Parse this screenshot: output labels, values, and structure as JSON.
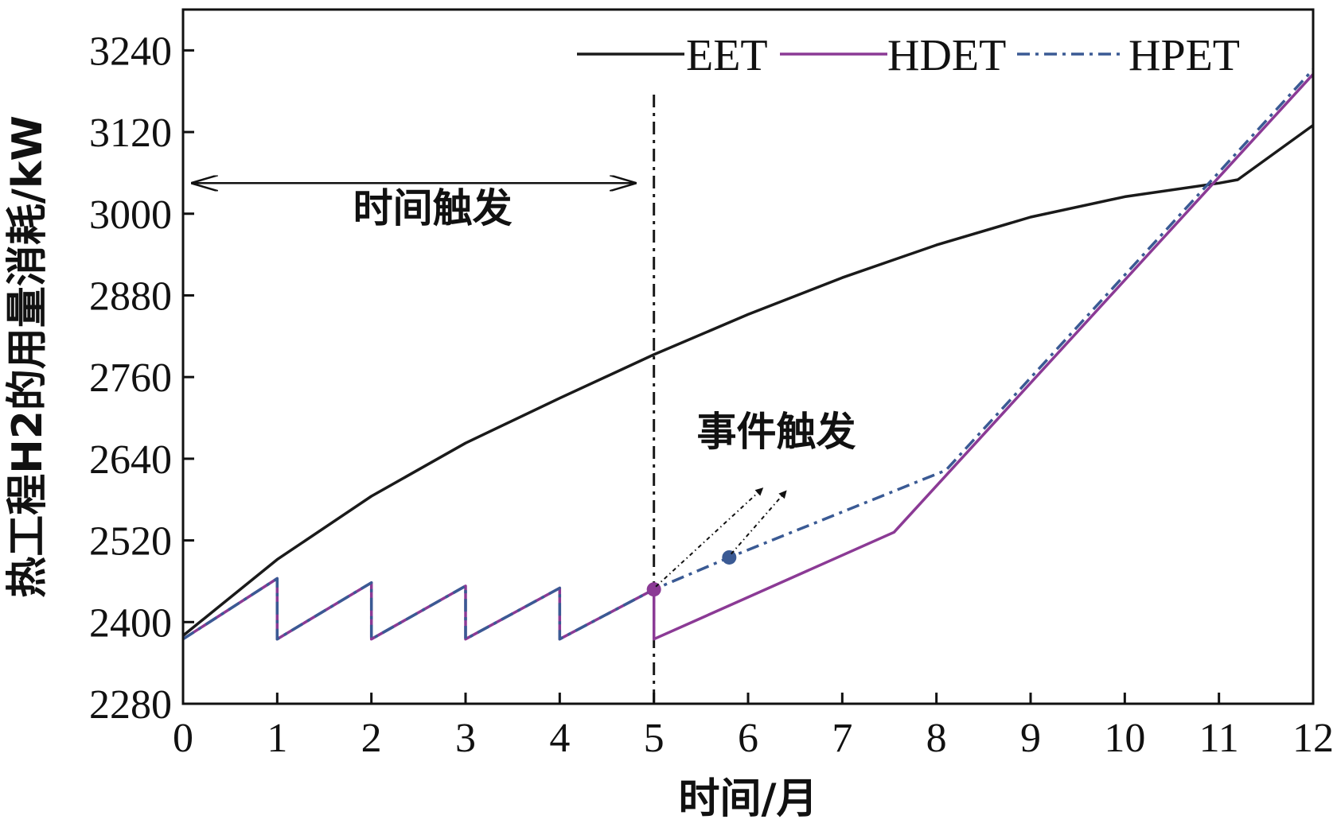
{
  "chart_data": {
    "type": "line",
    "title": "",
    "xlabel": "时间/月",
    "ylabel": "热工程H2的用量消耗/kW",
    "xlim": [
      0,
      12
    ],
    "ylim": [
      2280,
      3300
    ],
    "xticks": [
      0,
      1,
      2,
      3,
      4,
      5,
      6,
      7,
      8,
      9,
      10,
      11,
      12
    ],
    "yticks": [
      2280,
      2400,
      2520,
      2640,
      2760,
      2880,
      3000,
      3120,
      3240
    ],
    "grid": false,
    "legend_position": "top-right",
    "series": [
      {
        "name": "EET",
        "color": "#1a1a1a",
        "style": "solid",
        "x": [
          0,
          1,
          2,
          3,
          4,
          5,
          6,
          7,
          8,
          9,
          10,
          11,
          11.2,
          12
        ],
        "y": [
          2380,
          2492,
          2585,
          2663,
          2729,
          2793,
          2852,
          2906,
          2954,
          2995,
          3025,
          3045,
          3050,
          3130
        ]
      },
      {
        "name": "HDET",
        "color": "#8b3a95",
        "style": "solid",
        "x": [
          0,
          1,
          1,
          2,
          2,
          3,
          3,
          4,
          4,
          5,
          5,
          7.55,
          12
        ],
        "y": [
          2375,
          2464,
          2375,
          2458,
          2375,
          2453,
          2375,
          2450,
          2375,
          2448,
          2375,
          2532,
          3205
        ]
      },
      {
        "name": "HPET",
        "color": "#3a5a94",
        "style": "dashdot",
        "x": [
          0,
          1,
          1,
          2,
          2,
          3,
          3,
          4,
          4,
          5,
          5.8,
          8.1,
          12
        ],
        "y": [
          2375,
          2464,
          2375,
          2458,
          2375,
          2453,
          2375,
          2450,
          2375,
          2448,
          2495,
          2623,
          3212
        ]
      }
    ],
    "markers": [
      {
        "series": "HDET",
        "x": 5,
        "y": 2448,
        "color": "#8b3a95"
      },
      {
        "series": "HPET",
        "x": 5.8,
        "y": 2495,
        "color": "#3a5a94"
      }
    ],
    "vline": {
      "x": 5,
      "style": "dashdot",
      "color": "#1a1a1a"
    },
    "annotations": [
      {
        "text": "时间触发",
        "arrow_x_range": [
          0.1,
          4.8
        ],
        "arrow_y": 3045,
        "text_x": 2.65,
        "text_y": 2988
      },
      {
        "text": "事件触发",
        "text_x": 6.3,
        "text_y": 2660,
        "arrows": [
          {
            "from": [
              5.02,
              2452
            ],
            "to": [
              6.15,
              2596
            ]
          },
          {
            "from": [
              5.82,
              2500
            ],
            "to": [
              6.4,
              2592
            ]
          }
        ]
      }
    ]
  }
}
